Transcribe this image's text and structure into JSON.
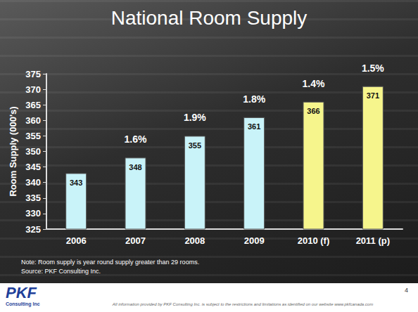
{
  "chart_data": {
    "type": "bar",
    "title": "National Room Supply",
    "y_label": "Room Supply (000's)",
    "categories": [
      "2006",
      "2007",
      "2008",
      "2009",
      "2010 (f)",
      "2011 (p)"
    ],
    "values": [
      343,
      348,
      355,
      361,
      366,
      371
    ],
    "colors": [
      "#c9f3f9",
      "#c9f3f9",
      "#c9f3f9",
      "#c9f3f9",
      "#f6f58c",
      "#f6f58c"
    ],
    "ylim": [
      325,
      375
    ],
    "yticks": [
      325,
      330,
      335,
      340,
      345,
      350,
      355,
      360,
      365,
      370,
      375
    ],
    "grid": false,
    "data_labels": true,
    "annotations": [
      {
        "category": "2007",
        "text": "1.6%"
      },
      {
        "category": "2008",
        "text": "1.9%"
      },
      {
        "category": "2009",
        "text": "1.8%"
      },
      {
        "category": "2010 (f)",
        "text": "1.4%"
      },
      {
        "category": "2011 (p)",
        "text": "1.5%"
      }
    ],
    "notes": [
      "Note:  Room supply is year round supply greater than 29 rooms.",
      "Source:  PKF Consulting Inc."
    ]
  },
  "page": {
    "logo": "PKF",
    "logo_subtitle": "Consulting Inc",
    "footer": "All information provided by PKF Consulting Inc. is subject to the restrictions and limitations as identified on our website www.pkfcanada.com",
    "page_number": "4"
  }
}
